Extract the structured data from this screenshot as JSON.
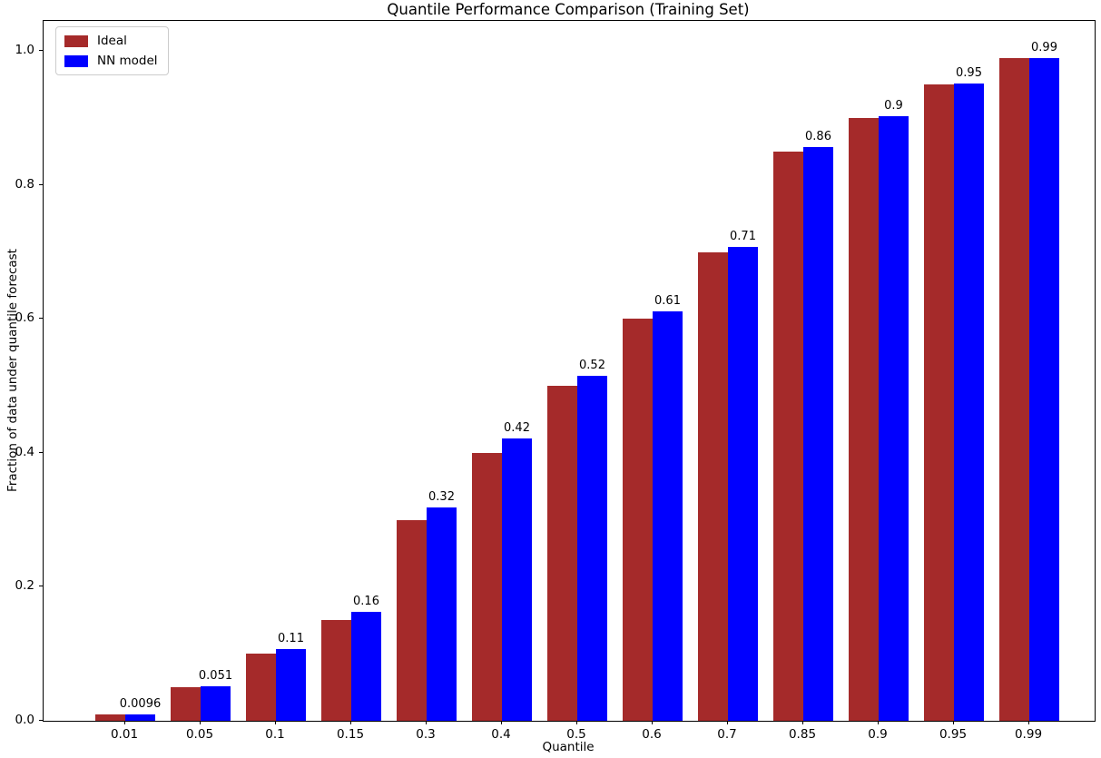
{
  "chart_data": {
    "type": "bar",
    "title": "Quantile Performance Comparison (Training Set)",
    "xlabel": "Quantile",
    "ylabel": "Fraction of data under quantile forecast",
    "categories": [
      "0.01",
      "0.05",
      "0.1",
      "0.15",
      "0.3",
      "0.4",
      "0.5",
      "0.6",
      "0.7",
      "0.85",
      "0.9",
      "0.95",
      "0.99"
    ],
    "series": [
      {
        "name": "Ideal",
        "color": "#A52A2A",
        "values": [
          0.01,
          0.05,
          0.1,
          0.15,
          0.3,
          0.4,
          0.5,
          0.6,
          0.7,
          0.85,
          0.9,
          0.95,
          0.99
        ]
      },
      {
        "name": "NN model",
        "color": "#0000FF",
        "values": [
          0.0096,
          0.051,
          0.107,
          0.163,
          0.318,
          0.422,
          0.515,
          0.611,
          0.708,
          0.857,
          0.903,
          0.951,
          0.99
        ],
        "bar_labels": [
          "0.0096",
          "0.051",
          "0.11",
          "0.16",
          "0.32",
          "0.42",
          "0.52",
          "0.61",
          "0.71",
          "0.86",
          "0.9",
          "0.95",
          "0.99"
        ]
      }
    ],
    "yticks": [
      "0.0",
      "0.2",
      "0.4",
      "0.6",
      "0.8",
      "1.0"
    ],
    "ylim": [
      0,
      1.045
    ],
    "grid": false,
    "legend": {
      "position": "upper-left",
      "items": [
        "Ideal",
        "NN model"
      ]
    }
  }
}
